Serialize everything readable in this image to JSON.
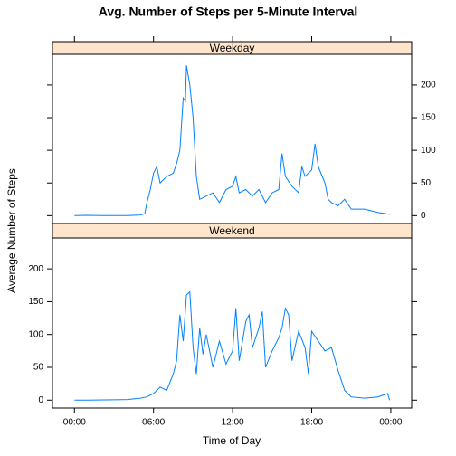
{
  "title": "Avg. Number of Steps per 5-Minute Interval",
  "xlabel": "Time of Day",
  "ylabel": "Average Number of Steps",
  "chart_data": [
    {
      "type": "line",
      "title": "Weekday",
      "ytick_side": "right",
      "xlim": [
        -100,
        1535
      ],
      "ylim": [
        -12,
        247
      ],
      "yticks": [
        0,
        50,
        100,
        150,
        200
      ],
      "x": [
        0,
        60,
        120,
        180,
        240,
        300,
        320,
        330,
        345,
        360,
        375,
        390,
        420,
        450,
        465,
        480,
        495,
        505,
        510,
        515,
        525,
        540,
        555,
        570,
        600,
        630,
        660,
        690,
        720,
        735,
        750,
        780,
        810,
        840,
        870,
        900,
        930,
        945,
        960,
        990,
        1020,
        1035,
        1050,
        1080,
        1095,
        1110,
        1140,
        1155,
        1170,
        1200,
        1230,
        1260,
        1320,
        1380,
        1435
      ],
      "series": [
        {
          "name": "Weekday",
          "color": "#0080ff",
          "values": [
            0,
            0.5,
            0.2,
            0,
            0.1,
            1,
            3,
            20,
            40,
            65,
            75,
            50,
            60,
            65,
            80,
            100,
            180,
            175,
            230,
            220,
            200,
            150,
            60,
            25,
            30,
            35,
            20,
            40,
            45,
            60,
            35,
            40,
            30,
            40,
            20,
            35,
            40,
            95,
            60,
            45,
            35,
            75,
            60,
            70,
            110,
            75,
            50,
            25,
            20,
            15,
            25,
            10,
            10,
            5,
            2
          ]
        }
      ]
    },
    {
      "type": "line",
      "title": "Weekend",
      "ytick_side": "left",
      "xlim": [
        -100,
        1535
      ],
      "ylim": [
        -12,
        247
      ],
      "yticks": [
        0,
        50,
        100,
        150,
        200
      ],
      "xticks": [
        {
          "value": 0,
          "label": "00:00"
        },
        {
          "value": 360,
          "label": "06:00"
        },
        {
          "value": 720,
          "label": "12:00"
        },
        {
          "value": 1080,
          "label": "18:00"
        },
        {
          "value": 1440,
          "label": "00:00"
        }
      ],
      "x": [
        0,
        60,
        180,
        240,
        300,
        330,
        360,
        390,
        420,
        450,
        465,
        480,
        495,
        510,
        525,
        540,
        555,
        570,
        585,
        600,
        630,
        660,
        690,
        720,
        735,
        750,
        780,
        795,
        810,
        840,
        855,
        870,
        900,
        930,
        945,
        960,
        975,
        990,
        1020,
        1050,
        1065,
        1080,
        1110,
        1140,
        1170,
        1200,
        1230,
        1260,
        1320,
        1380,
        1425,
        1435
      ],
      "series": [
        {
          "name": "Weekend",
          "color": "#0080ff",
          "values": [
            0,
            0,
            0.5,
            1,
            3,
            5,
            10,
            20,
            15,
            40,
            60,
            130,
            90,
            160,
            165,
            80,
            40,
            110,
            70,
            100,
            50,
            90,
            55,
            75,
            140,
            60,
            120,
            130,
            80,
            110,
            135,
            50,
            75,
            95,
            110,
            140,
            130,
            60,
            105,
            80,
            40,
            105,
            90,
            75,
            80,
            45,
            15,
            5,
            3,
            5,
            10,
            0
          ]
        }
      ]
    }
  ]
}
